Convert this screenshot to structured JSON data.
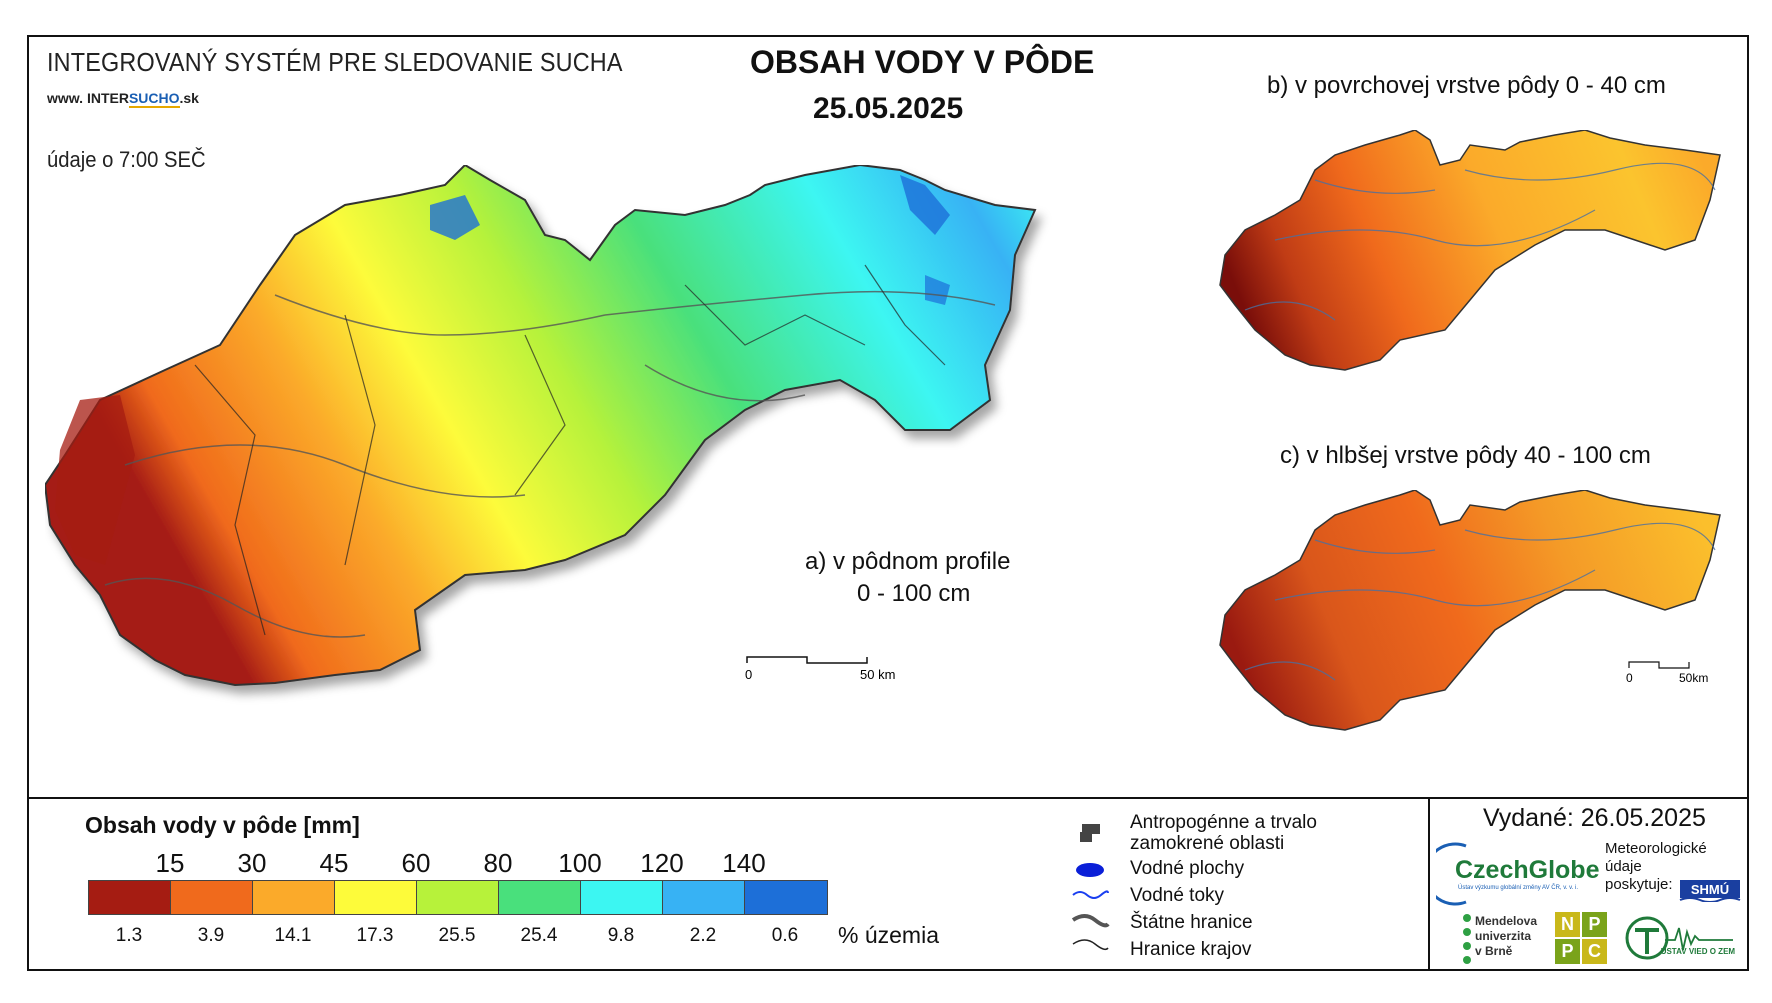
{
  "header": {
    "system_title": "INTEGROVANÝ SYSTÉM PRE SLEDOVANIE SUCHA",
    "website_prefix": "www.",
    "website_part1": "INTER",
    "website_part2": "SUCHO",
    "website_suffix": ".sk",
    "data_time": "údaje o 7:00 SEČ",
    "main_title": "OBSAH VODY V PÔDE",
    "main_date": "25.05.2025"
  },
  "maps": {
    "a_label_line1": "a) v pôdnom profile",
    "a_label_line2": "0 - 100 cm",
    "b_label": "b) v povrchovej vrstve pôdy 0 - 40 cm",
    "c_label": "c) v hlbšej vrstve pôdy 40 - 100 cm",
    "scale_main": {
      "zero": "0",
      "end": "50 km"
    },
    "scale_small": {
      "zero": "0",
      "end": "50km"
    }
  },
  "legend": {
    "title": "Obsah vody v pôde  [mm]",
    "ticks": [
      "15",
      "30",
      "45",
      "60",
      "80",
      "100",
      "120",
      "140"
    ],
    "colors": [
      "#a51c12",
      "#f06a1c",
      "#fbaa2a",
      "#fdfb3a",
      "#b7f23a",
      "#49e07c",
      "#3cf6f2",
      "#37b2f4",
      "#1d6fd8"
    ],
    "percents": [
      "1.3",
      "3.9",
      "14.1",
      "17.3",
      "25.5",
      "25.4",
      "9.8",
      "2.2",
      "0.6"
    ],
    "percent_unit": "% územia"
  },
  "symbols": {
    "anthropogenic_line1": "Antropogénne a trvalo",
    "anthropogenic_line2": "zamokrené oblasti",
    "water_bodies": "Vodné plochy",
    "water_streams": "Vodné toky",
    "state_border": "Štátne hranice",
    "region_border": "Hranice krajov"
  },
  "footer": {
    "issued": "Vydané: 26.05.2025",
    "czechglobe": "CzechGlobe",
    "czechglobe_sub": "Ústav výzkumu globální změny AV ČR, v. v. i.",
    "meteo_line1": "Meteorologické",
    "meteo_line2": "údaje",
    "meteo_line3": "poskytuje:",
    "shmu": "SHMÚ",
    "mendel_line1": "Mendelova",
    "mendel_line2": "univerzita",
    "mendel_line3": "v Brně",
    "npc": [
      "N",
      "P",
      "P",
      "C"
    ],
    "uvz": "ÚSTAV VIED O ZEMI"
  }
}
